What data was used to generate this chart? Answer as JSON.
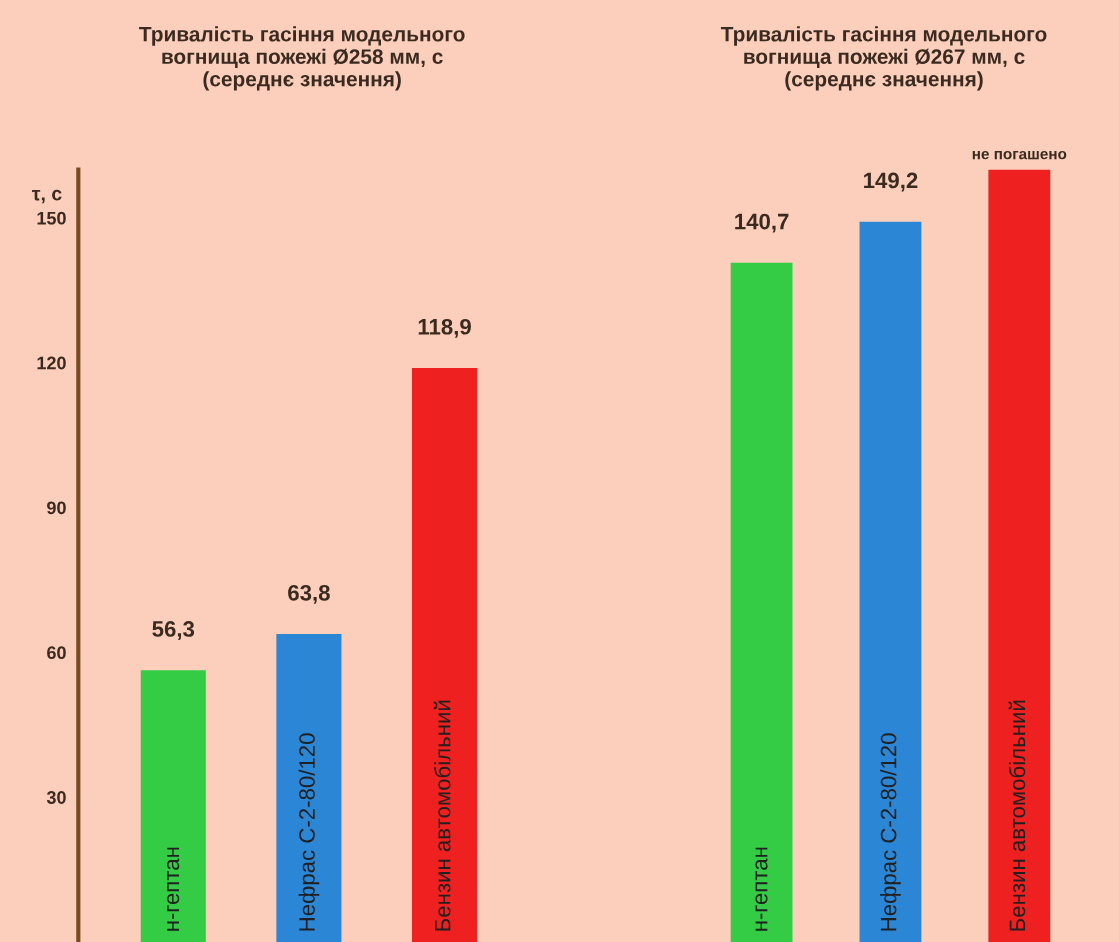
{
  "chart_data": [
    {
      "type": "bar",
      "title": "Тривалість гасіння модельного\nвогнища пожежі Ø258 мм, с\n(середнє значення)",
      "ylabel": "τ, с",
      "categories": [
        "н-гептан",
        "Нефрас С-2-80/120",
        "Бензин автомобільний"
      ],
      "values": [
        56.3,
        63.8,
        118.9
      ],
      "colors": [
        "#33cc44",
        "#2b86d6",
        "#ee2020"
      ],
      "value_labels": [
        "56,3",
        "63,8",
        "118,9"
      ],
      "ylim": [
        0,
        160
      ],
      "yticks": [
        30,
        60,
        90,
        120,
        150
      ],
      "grid": false,
      "legend": false
    },
    {
      "type": "bar",
      "title": "Тривалість гасіння модельного\nвогнища пожежі Ø267 мм, с\n(середнє значення)",
      "categories": [
        "н-гептан",
        "Нефрас С-2-80/120",
        "Бензин автомобільний"
      ],
      "values": [
        140.7,
        149.2,
        160
      ],
      "colors": [
        "#33cc44",
        "#2b86d6",
        "#ee2020"
      ],
      "value_labels": [
        "140,7",
        "149,2",
        "не погашено"
      ],
      "ylim": [
        0,
        160
      ],
      "tick_labels": "x",
      "grid": false,
      "legend": false
    }
  ]
}
